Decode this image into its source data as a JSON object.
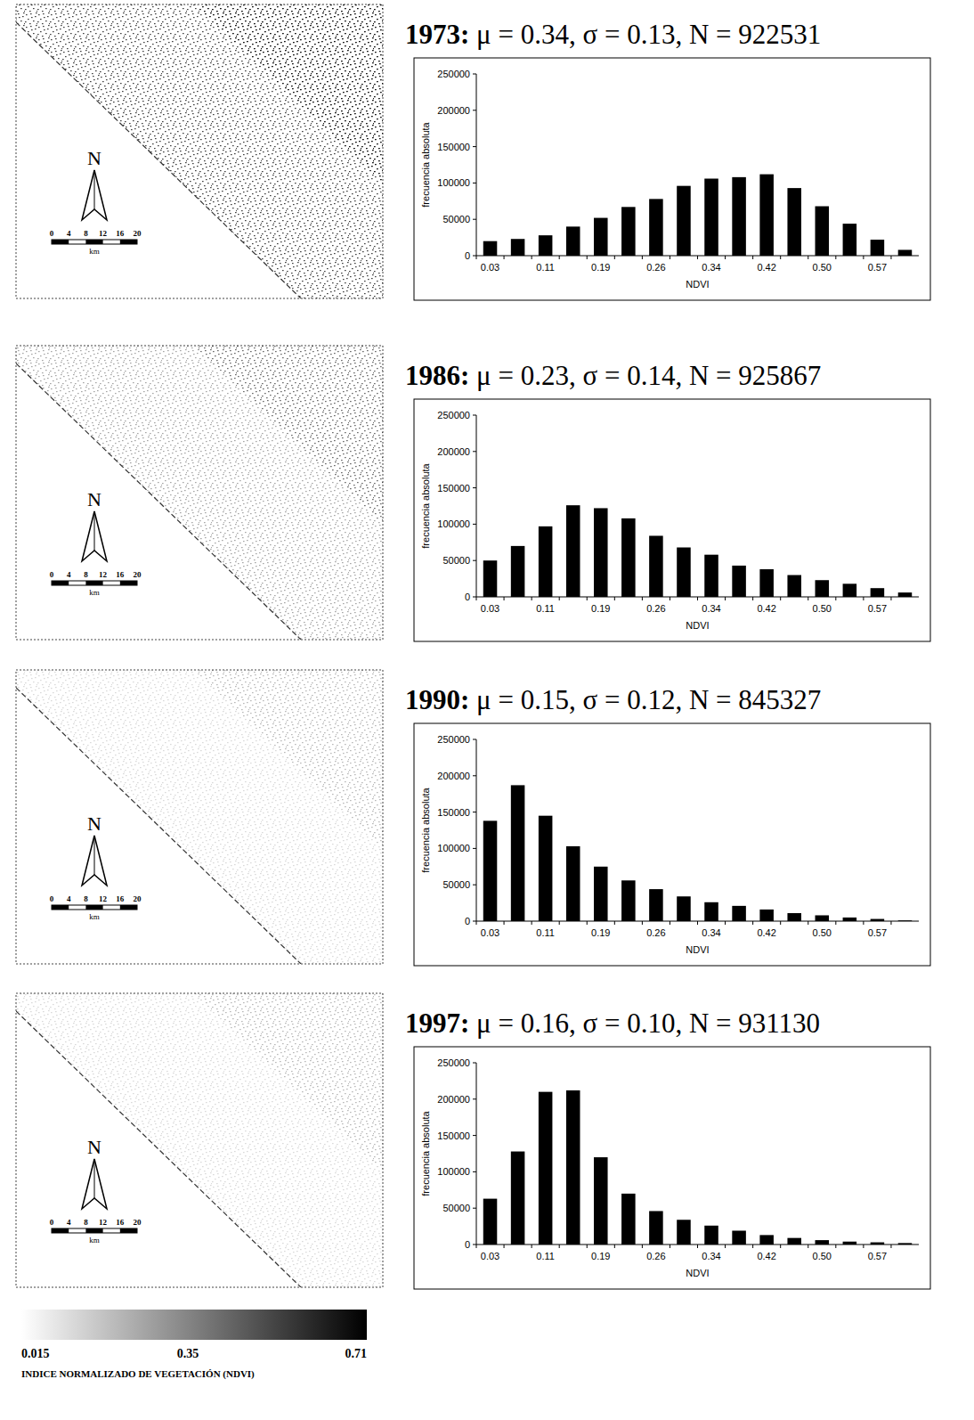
{
  "chart_data": [
    {
      "type": "bar",
      "title": "1973: μ = 0.34, σ = 0.13, N = 922531",
      "x_label": "NDVI",
      "y_label": "frecuencia absoluta",
      "categories": [
        "0.03",
        null,
        "0.11",
        null,
        "0.19",
        null,
        "0.26",
        null,
        "0.34",
        null,
        "0.42",
        null,
        "0.50",
        null,
        "0.57",
        null
      ],
      "values": [
        20000,
        23000,
        28000,
        40000,
        52000,
        67000,
        78000,
        96000,
        106000,
        108000,
        112000,
        93000,
        68000,
        44000,
        22000,
        8000
      ],
      "color": "#000000",
      "ylim": [
        0,
        250000
      ],
      "yticks": [
        0,
        50000,
        100000,
        150000,
        200000,
        250000
      ],
      "grid": false
    },
    {
      "type": "bar",
      "title": "1986: μ = 0.23, σ = 0.14, N = 925867",
      "x_label": "NDVI",
      "y_label": "frecuencia absoluta",
      "categories": [
        "0.03",
        null,
        "0.11",
        null,
        "0.19",
        null,
        "0.26",
        null,
        "0.34",
        null,
        "0.42",
        null,
        "0.50",
        null,
        "0.57",
        null
      ],
      "values": [
        50000,
        70000,
        97000,
        126000,
        122000,
        108000,
        84000,
        68000,
        58000,
        43000,
        38000,
        30000,
        23000,
        18000,
        12000,
        6000
      ],
      "color": "#000000",
      "ylim": [
        0,
        250000
      ],
      "yticks": [
        0,
        50000,
        100000,
        150000,
        200000,
        250000
      ],
      "grid": false
    },
    {
      "type": "bar",
      "title": "1990: μ = 0.15, σ = 0.12, N = 845327",
      "x_label": "NDVI",
      "y_label": "frecuencia absoluta",
      "categories": [
        "0.03",
        null,
        "0.11",
        null,
        "0.19",
        null,
        "0.26",
        null,
        "0.34",
        null,
        "0.42",
        null,
        "0.50",
        null,
        "0.57",
        null
      ],
      "values": [
        138000,
        187000,
        145000,
        103000,
        75000,
        56000,
        44000,
        34000,
        26000,
        21000,
        16000,
        11000,
        8000,
        5000,
        3000,
        1000
      ],
      "color": "#000000",
      "ylim": [
        0,
        250000
      ],
      "yticks": [
        0,
        50000,
        100000,
        150000,
        200000,
        250000
      ],
      "grid": false
    },
    {
      "type": "bar",
      "title": "1997: μ = 0.16, σ = 0.10, N = 931130",
      "x_label": "NDVI",
      "y_label": "frecuencia absoluta",
      "categories": [
        "0.03",
        null,
        "0.11",
        null,
        "0.19",
        null,
        "0.26",
        null,
        "0.34",
        null,
        "0.42",
        null,
        "0.50",
        null,
        "0.57",
        null
      ],
      "values": [
        63000,
        128000,
        210000,
        212000,
        120000,
        70000,
        46000,
        34000,
        26000,
        19000,
        13000,
        9000,
        6000,
        4000,
        3000,
        2000
      ],
      "color": "#000000",
      "ylim": [
        0,
        250000
      ],
      "yticks": [
        0,
        50000,
        100000,
        150000,
        200000,
        250000
      ],
      "grid": false
    }
  ],
  "map": {
    "north": "N",
    "scale_ticks": [
      0,
      4,
      8,
      12,
      16,
      20
    ],
    "scale_unit": "km"
  },
  "colorbar": {
    "ticks": [
      0.015,
      0.35,
      0.71
    ],
    "title": "INDICE NORMALIZADO DE VEGETACIÓN (NDVI)"
  }
}
